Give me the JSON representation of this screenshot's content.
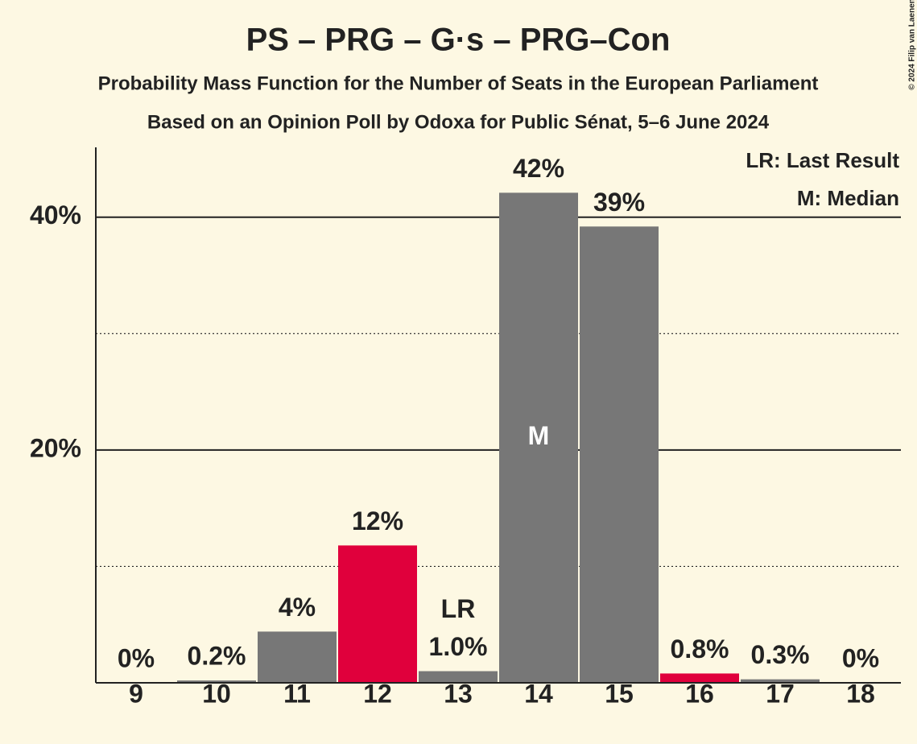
{
  "chart_data": {
    "type": "bar",
    "title": "PS – PRG – G·s – PRG–Con",
    "subtitle": "Probability Mass Function for the Number of Seats in the European Parliament",
    "subtitle2": "Based on an Opinion Poll by Odoxa for Public Sénat, 5–6 June 2024",
    "copyright": "© 2024 Filip van Laenen",
    "categories": [
      "9",
      "10",
      "11",
      "12",
      "13",
      "14",
      "15",
      "16",
      "17",
      "18"
    ],
    "values": [
      0,
      0.2,
      4.4,
      11.8,
      1.0,
      42.1,
      39.2,
      0.8,
      0.3,
      0
    ],
    "value_labels": [
      "0%",
      "0.2%",
      "4%",
      "12%",
      "1.0%",
      "42%",
      "39%",
      "0.8%",
      "0.3%",
      "0%"
    ],
    "colors": [
      "#777777",
      "#777777",
      "#777777",
      "#e0003c",
      "#777777",
      "#777777",
      "#777777",
      "#e0003c",
      "#777777",
      "#777777"
    ],
    "ylim": [
      0,
      46
    ],
    "yticks": [
      {
        "value": 20,
        "label": "20%"
      },
      {
        "value": 40,
        "label": "40%"
      }
    ],
    "minor_yticks": [
      10,
      30
    ],
    "grid": true,
    "markers": {
      "last_result": {
        "label": "LR",
        "category": "13"
      },
      "median": {
        "label": "M",
        "category": "14"
      }
    },
    "legend": [
      "LR: Last Result",
      "M: Median"
    ]
  }
}
